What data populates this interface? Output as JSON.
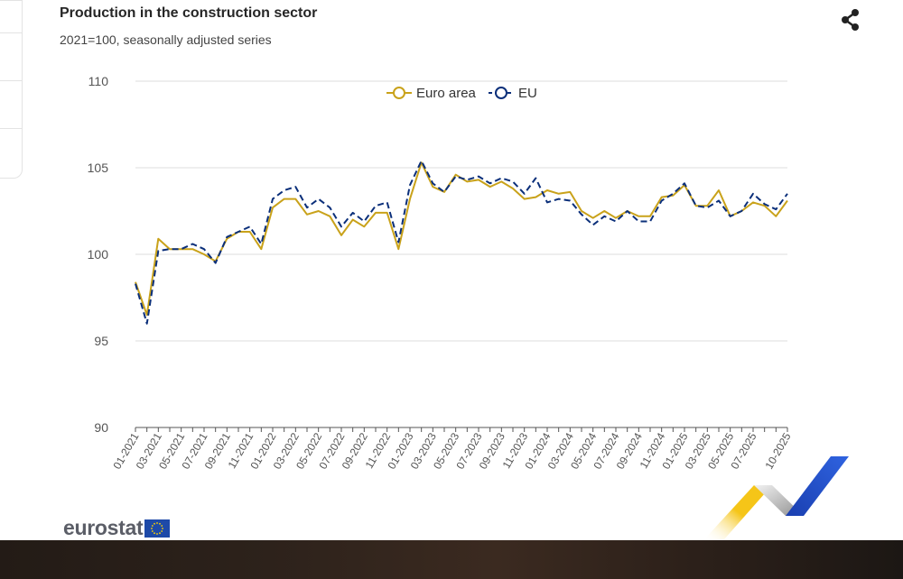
{
  "header": {
    "title": "Production in the construction sector",
    "subtitle": "2021=100, seasonally adjusted series"
  },
  "logo": {
    "text": "eurostat"
  },
  "chart_data": {
    "type": "line",
    "title": "Production in the construction sector",
    "subtitle": "2021=100, seasonally adjusted series",
    "xlabel": "",
    "ylabel": "",
    "ylim": [
      90,
      110
    ],
    "yticks": [
      90,
      95,
      100,
      105,
      110
    ],
    "grid": true,
    "legend_position": "top-center",
    "x_tick_labels": [
      "01-2021",
      "03-2021",
      "05-2021",
      "07-2021",
      "09-2021",
      "11-2021",
      "01-2022",
      "03-2022",
      "05-2022",
      "07-2022",
      "09-2022",
      "11-2022",
      "01-2023",
      "03-2023",
      "05-2023",
      "07-2023",
      "09-2023",
      "11-2023",
      "01-2024",
      "03-2024",
      "05-2024",
      "07-2024",
      "09-2024",
      "11-2024",
      "01-2025",
      "03-2025",
      "05-2025",
      "07-2025",
      "10-2025"
    ],
    "x": [
      "01-2021",
      "02-2021",
      "03-2021",
      "04-2021",
      "05-2021",
      "06-2021",
      "07-2021",
      "08-2021",
      "09-2021",
      "10-2021",
      "11-2021",
      "12-2021",
      "01-2022",
      "02-2022",
      "03-2022",
      "04-2022",
      "05-2022",
      "06-2022",
      "07-2022",
      "08-2022",
      "09-2022",
      "10-2022",
      "11-2022",
      "12-2022",
      "01-2023",
      "02-2023",
      "03-2023",
      "04-2023",
      "05-2023",
      "06-2023",
      "07-2023",
      "08-2023",
      "09-2023",
      "10-2023",
      "11-2023",
      "12-2023",
      "01-2024",
      "02-2024",
      "03-2024",
      "04-2024",
      "05-2024",
      "06-2024",
      "07-2024",
      "08-2024",
      "09-2024",
      "10-2024",
      "11-2024",
      "12-2024",
      "01-2025",
      "02-2025",
      "03-2025",
      "04-2025",
      "05-2025",
      "06-2025",
      "07-2025",
      "08-2025",
      "09-2025",
      "10-2025"
    ],
    "series": [
      {
        "name": "Euro area",
        "color": "#c9a21a",
        "dashed": false,
        "values": [
          98.4,
          96.5,
          100.9,
          100.3,
          100.3,
          100.3,
          100.0,
          99.6,
          100.9,
          101.3,
          101.3,
          100.3,
          102.7,
          103.2,
          103.2,
          102.3,
          102.5,
          102.2,
          101.1,
          102.0,
          101.6,
          102.4,
          102.4,
          100.3,
          103.2,
          105.3,
          103.9,
          103.6,
          104.6,
          104.2,
          104.3,
          103.9,
          104.2,
          103.8,
          103.2,
          103.3,
          103.7,
          103.5,
          103.6,
          102.5,
          102.1,
          102.5,
          102.1,
          102.5,
          102.2,
          102.2,
          103.3,
          103.4,
          104.0,
          102.8,
          102.8,
          103.7,
          102.2,
          102.5,
          103.0,
          102.8,
          102.2,
          103.1
        ]
      },
      {
        "name": "EU",
        "color": "#0b2f7a",
        "dashed": true,
        "values": [
          98.3,
          96.0,
          100.2,
          100.3,
          100.3,
          100.6,
          100.3,
          99.5,
          101.0,
          101.3,
          101.6,
          100.6,
          103.2,
          103.7,
          103.9,
          102.7,
          103.2,
          102.7,
          101.6,
          102.4,
          101.9,
          102.8,
          103.0,
          100.7,
          104.0,
          105.4,
          104.1,
          103.6,
          104.5,
          104.3,
          104.5,
          104.1,
          104.4,
          104.2,
          103.5,
          104.4,
          103.0,
          103.2,
          103.1,
          102.3,
          101.7,
          102.2,
          101.9,
          102.5,
          101.9,
          101.9,
          103.1,
          103.5,
          104.1,
          102.8,
          102.7,
          103.1,
          102.2,
          102.5,
          103.5,
          102.9,
          102.6,
          103.5
        ]
      }
    ]
  }
}
